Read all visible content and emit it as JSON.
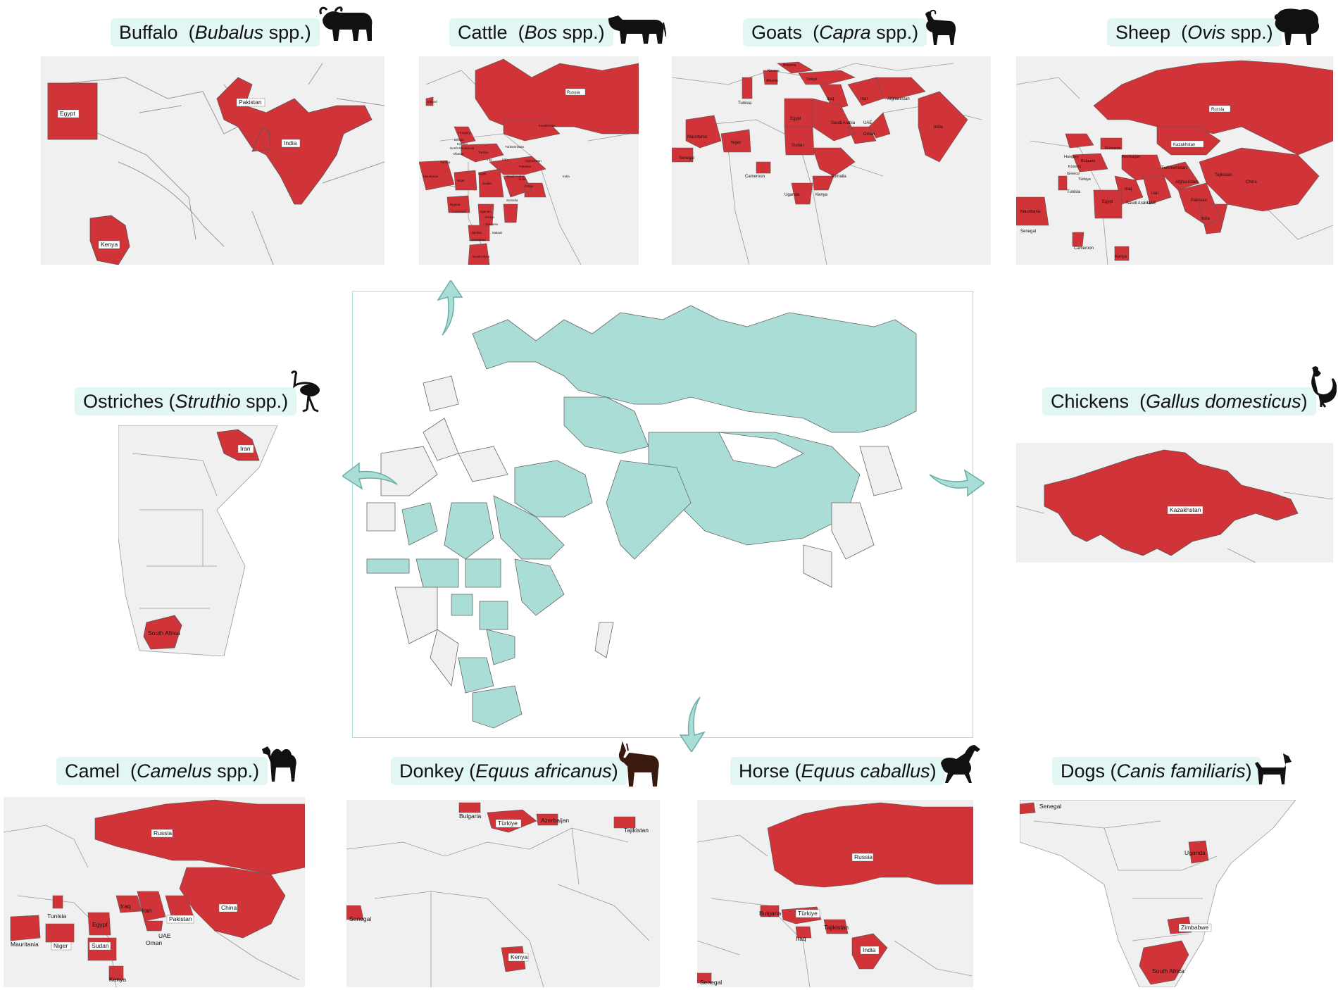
{
  "colors": {
    "highlight": "#d13438",
    "land": "#f0f0f0",
    "border": "#555555",
    "label_bg": "#e2f7f3",
    "central_fill": "#a9ddd6",
    "arrow": "#a9ddd6"
  },
  "panels": [
    {
      "id": "buffalo",
      "common": "Buffalo",
      "scientific": "Bubalus",
      "suffix": " spp.)",
      "prefix": "(",
      "icon": "buffalo-icon",
      "countries": [
        "Egypt",
        "Pakistan",
        "India",
        "Kenya"
      ]
    },
    {
      "id": "cattle",
      "common": "Cattle",
      "scientific": "Bos",
      "suffix": " spp.)",
      "prefix": "(",
      "icon": "cow-icon",
      "countries": [
        "Russia",
        "Ireland",
        "Hungary",
        "Kazakhstan",
        "Bosnia",
        "Kosovo",
        "North Macedonia",
        "Albania",
        "Türkiye",
        "Turkmenistan",
        "Tunisia",
        "Iraq",
        "Iran",
        "Afghanistan",
        "Pakistan",
        "Egypt",
        "Mauritania",
        "Niger",
        "Sudan",
        "Saudi Arabia",
        "UAE",
        "Oman",
        "India",
        "Nigeria",
        "Somalia",
        "Cameroon",
        "Uganda",
        "Kenya",
        "Tanzania",
        "Zambia",
        "Malawi",
        "Zimbabwe",
        "South Africa"
      ]
    },
    {
      "id": "goats",
      "common": "Goats",
      "scientific": "Capra",
      "suffix": " spp.)",
      "prefix": "(",
      "icon": "goat-icon",
      "countries": [
        "Bulgaria",
        "Kosovo",
        "Albania",
        "Türkiye",
        "Tunisia",
        "Iraq",
        "Iran",
        "Afghanistan",
        "Egypt",
        "Saudi Arabia",
        "UAE",
        "Oman",
        "India",
        "Mauritania",
        "Niger",
        "Sudan",
        "Senegal",
        "Somalia",
        "Cameroon",
        "Uganda",
        "Kenya"
      ]
    },
    {
      "id": "sheep",
      "common": "Sheep",
      "scientific": "Ovis",
      "suffix": " spp.)",
      "prefix": "(",
      "icon": "sheep-icon",
      "countries": [
        "Russia",
        "Kazakhstan",
        "Romania",
        "Hungary",
        "Bulgaria",
        "Azerbaijan",
        "Kosovo",
        "Turkmenistan",
        "Greece",
        "Tajikistan",
        "Türkiye",
        "Iraq",
        "Iran",
        "Afghanistan",
        "China",
        "Tunisia",
        "Egypt",
        "Saudi Arabia",
        "UAE",
        "Pakistan",
        "Mauritania",
        "India",
        "Senegal",
        "Cameroon",
        "Kenya"
      ]
    },
    {
      "id": "ostriches",
      "common": "Ostriches",
      "scientific": "Struthio",
      "suffix": " spp.)",
      "prefix": "(",
      "icon": "ostrich-icon",
      "countries": [
        "Iran",
        "South Africa"
      ]
    },
    {
      "id": "chickens",
      "common": "Chickens",
      "scientific": "Gallus domesticus",
      "suffix": ")",
      "prefix": "(",
      "icon": "chicken-icon",
      "countries": [
        "Kazakhstan"
      ]
    },
    {
      "id": "camel",
      "common": "Camel",
      "scientific": "Camelus",
      "suffix": " spp.)",
      "prefix": "(",
      "icon": "camel-icon",
      "countries": [
        "Russia",
        "Iraq",
        "Iran",
        "Pakistan",
        "China",
        "Tunisia",
        "Egypt",
        "UAE",
        "Oman",
        "Mauritania",
        "Niger",
        "Sudan",
        "Kenya"
      ]
    },
    {
      "id": "donkey",
      "common": "Donkey",
      "scientific": "Equus africanus",
      "suffix": ")",
      "prefix": "(",
      "icon": "donkey-icon",
      "countries": [
        "Bulgaria",
        "Türkiye",
        "Azerbaijan",
        "Tajikistan",
        "Senegal",
        "Kenya"
      ]
    },
    {
      "id": "horse",
      "common": "Horse",
      "scientific": "Equus caballus",
      "suffix": ")",
      "prefix": "(",
      "icon": "horse-icon",
      "countries": [
        "Russia",
        "Bulgaria",
        "Türkiye",
        "Tajikistan",
        "Iraq",
        "India",
        "Senegal"
      ]
    },
    {
      "id": "dogs",
      "common": "Dogs",
      "scientific": "Canis familiaris",
      "suffix": ")",
      "prefix": "(",
      "icon": "dog-icon",
      "countries": [
        "Senegal",
        "Uganda",
        "Zimbabwe",
        "South Africa"
      ]
    }
  ]
}
